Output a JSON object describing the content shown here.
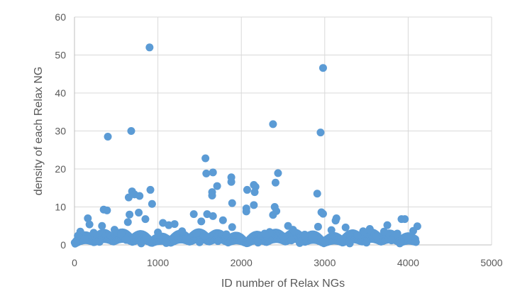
{
  "chart_data": {
    "type": "scatter",
    "xlabel": "ID number of Relax NGs",
    "ylabel": "density of each Relax NG",
    "xlim": [
      0,
      5000
    ],
    "ylim": [
      0,
      60
    ],
    "x_ticks": [
      "0",
      "1000",
      "2000",
      "3000",
      "4000",
      "5000"
    ],
    "y_ticks": [
      "0",
      "10",
      "20",
      "30",
      "40",
      "50",
      "60"
    ],
    "grid": true,
    "legend": "none",
    "marker_color": "#5b9bd5",
    "series": [
      {
        "points": [
          [
            900,
            52
          ],
          [
            2980,
            46.6
          ],
          [
            2380,
            31.8
          ],
          [
            680,
            30
          ],
          [
            2950,
            29.6
          ],
          [
            400,
            28.5
          ],
          [
            1570,
            22.8
          ],
          [
            1880,
            17.8
          ],
          [
            2440,
            18.9
          ],
          [
            1580,
            18.8
          ],
          [
            1660,
            19.1
          ],
          [
            1880,
            16.6
          ],
          [
            2150,
            15.8
          ],
          [
            2170,
            15.3
          ],
          [
            1710,
            15.5
          ],
          [
            2410,
            16.4
          ],
          [
            910,
            14.5
          ],
          [
            2070,
            14.5
          ],
          [
            690,
            14.1
          ],
          [
            2160,
            13.9
          ],
          [
            1650,
            13.9
          ],
          [
            1650,
            13.0
          ],
          [
            2910,
            13.5
          ],
          [
            720,
            13.3
          ],
          [
            780,
            12.9
          ],
          [
            650,
            12.5
          ],
          [
            930,
            10.8
          ],
          [
            1890,
            11.0
          ],
          [
            2150,
            10.5
          ],
          [
            2400,
            10.0
          ],
          [
            2060,
            9.6
          ],
          [
            350,
            9.3
          ],
          [
            390,
            9.1
          ],
          [
            2420,
            8.9
          ],
          [
            2060,
            8.8
          ],
          [
            2960,
            8.6
          ],
          [
            770,
            8.5
          ],
          [
            2980,
            8.2
          ],
          [
            1430,
            8.1
          ],
          [
            1590,
            8.1
          ],
          [
            660,
            8.0
          ],
          [
            2380,
            7.9
          ],
          [
            1660,
            7.6
          ],
          [
            3140,
            7.0
          ],
          [
            160,
            7.0
          ],
          [
            850,
            6.8
          ],
          [
            1520,
            6.2
          ],
          [
            1780,
            6.5
          ],
          [
            3130,
            6.4
          ],
          [
            3920,
            6.8
          ],
          [
            3960,
            6.8
          ],
          [
            640,
            6.0
          ],
          [
            1060,
            5.8
          ],
          [
            1200,
            5.5
          ],
          [
            180,
            5.4
          ],
          [
            1130,
            5.2
          ],
          [
            2560,
            5.0
          ],
          [
            330,
            5.0
          ],
          [
            3750,
            5.2
          ],
          [
            4110,
            4.9
          ],
          [
            2920,
            4.8
          ],
          [
            3250,
            4.6
          ],
          [
            1890,
            4.7
          ],
          [
            3540,
            4.2
          ],
          [
            480,
            4.0
          ],
          [
            2620,
            4.0
          ],
          [
            3080,
            3.9
          ],
          [
            4060,
            3.7
          ],
          [
            70,
            3.5
          ],
          [
            1290,
            3.6
          ],
          [
            3460,
            3.6
          ],
          [
            3710,
            3.5
          ],
          [
            2340,
            3.4
          ],
          [
            1000,
            3.3
          ],
          [
            230,
            3.2
          ],
          [
            1460,
            3.1
          ],
          [
            2280,
            3.0
          ],
          [
            3870,
            3.0
          ],
          [
            560,
            2.9
          ],
          [
            1820,
            2.8
          ],
          [
            2760,
            2.7
          ],
          [
            3390,
            2.6
          ],
          [
            40,
            2.4
          ],
          [
            1560,
            2.4
          ],
          [
            2500,
            2.3
          ],
          [
            3620,
            2.2
          ],
          [
            860,
            2.1
          ],
          [
            1990,
            2.0
          ],
          [
            2860,
            1.9
          ],
          [
            4000,
            1.8
          ],
          [
            120,
            1.6
          ],
          [
            1340,
            1.6
          ],
          [
            3200,
            1.5
          ],
          [
            620,
            1.3
          ],
          [
            2600,
            1.2
          ],
          [
            3800,
            1.2
          ],
          [
            20,
            1.0
          ],
          [
            1720,
            1.0
          ],
          [
            3000,
            0.9
          ],
          [
            4090,
            0.8
          ],
          [
            300,
            0.8
          ],
          [
            1500,
            0.7
          ],
          [
            2200,
            0.6
          ],
          [
            3500,
            0.6
          ],
          [
            10,
            0.5
          ],
          [
            1100,
            0.5
          ],
          [
            2700,
            0.5
          ],
          [
            3900,
            0.4
          ],
          [
            800,
            0.4
          ],
          [
            3300,
            0.4
          ]
        ]
      }
    ]
  }
}
